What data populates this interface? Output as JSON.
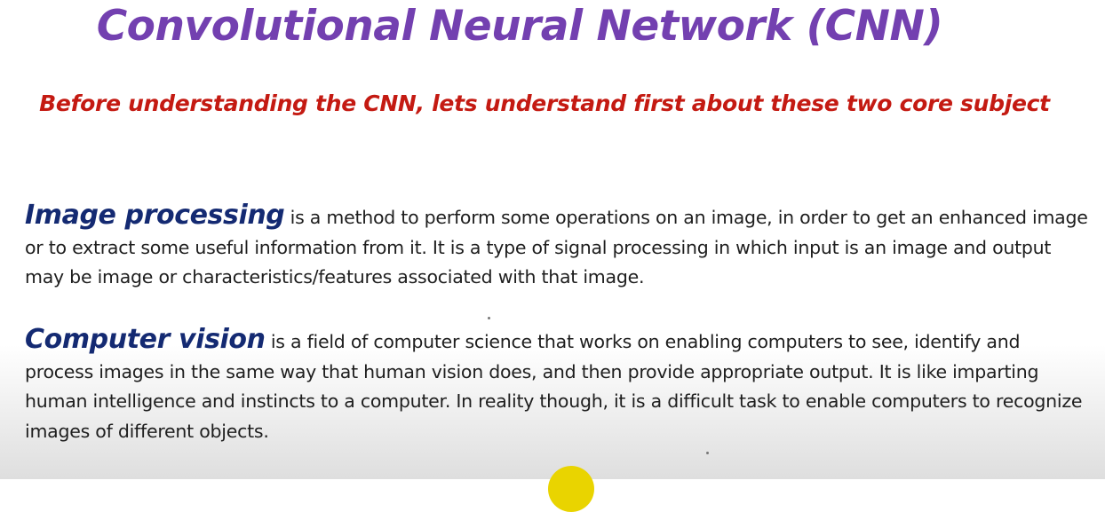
{
  "colors": {
    "title": "#7340b0",
    "subtitle": "#c41a12",
    "term": "#142a72",
    "body_text": "#1e1e1e",
    "pointer": "#e9d400"
  },
  "slide": {
    "title": "Convolutional Neural Network (CNN)",
    "subtitle": "Before understanding the CNN, lets understand first about these two core subject",
    "sections": [
      {
        "term": "Image processing",
        "text": " is a method to perform some operations on an image, in order to get an enhanced image or to extract some useful information from it. It is a type of signal processing in which input is an image and output may be image or characteristics/features associated with that image."
      },
      {
        "term": "Computer vision",
        "text": " is a field of computer science that works on enabling computers to see, identify and process images in the same way that human vision does, and then provide appropriate output. It is like imparting human intelligence and instincts to a computer. In reality though, it is a difficult task to enable computers to recognize images of different objects."
      }
    ]
  }
}
